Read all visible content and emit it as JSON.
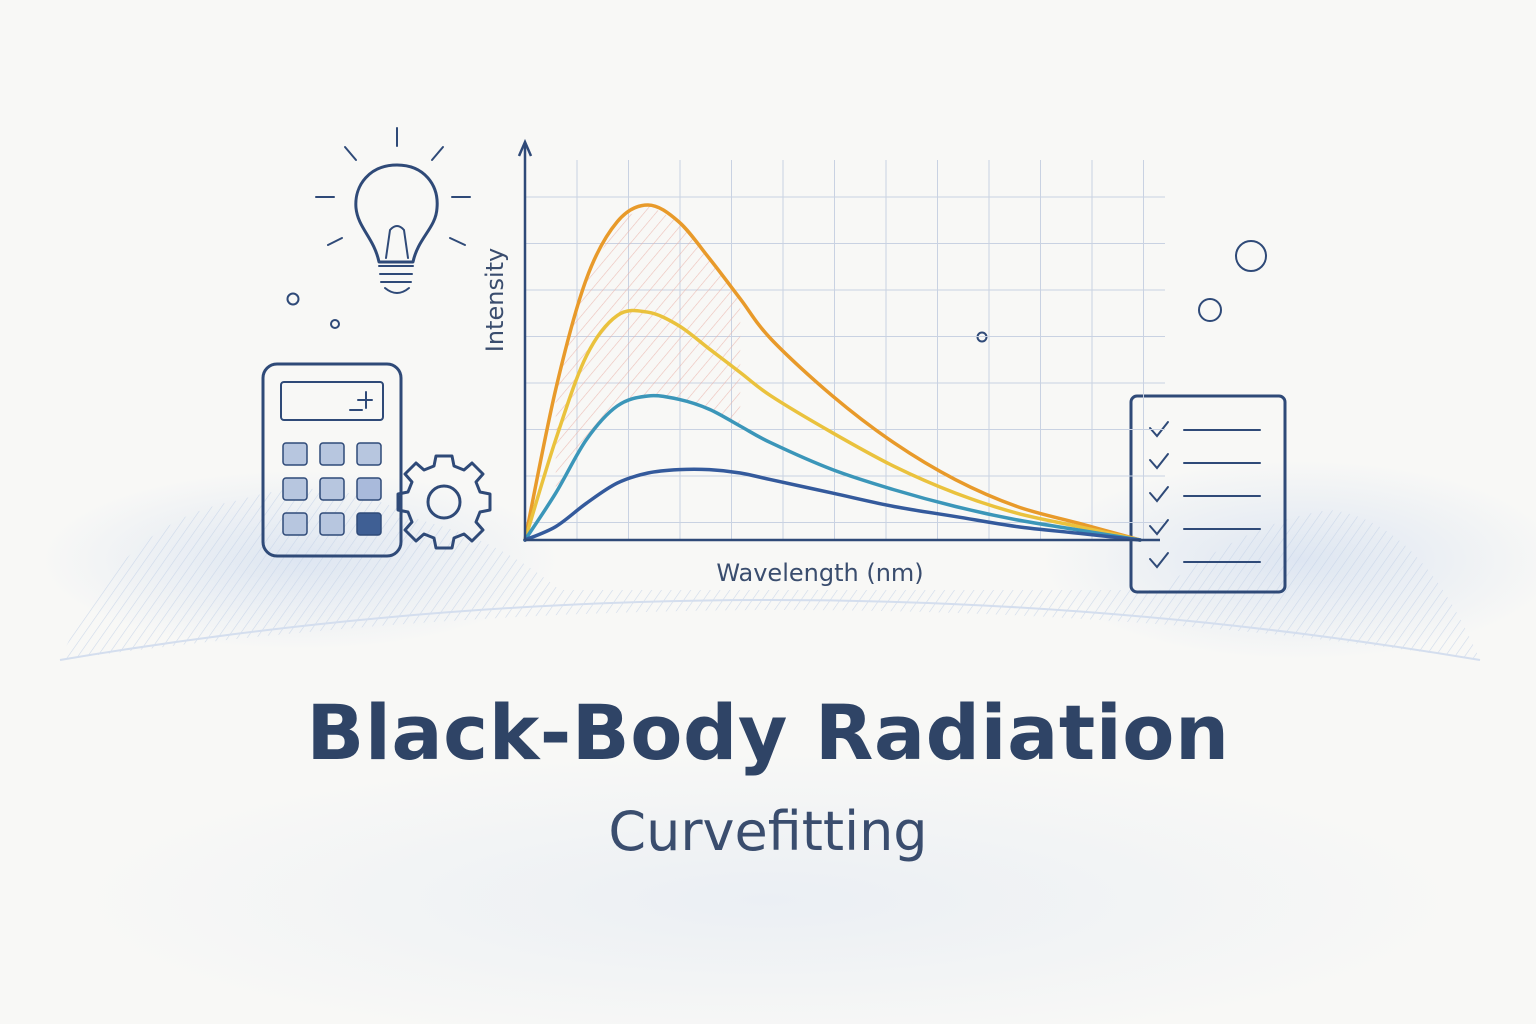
{
  "title": "Black-Body Radiation",
  "subtitle": "Curvefitting",
  "colors": {
    "ink": "#2f4a78",
    "title": "#2f4466",
    "background": "#f8f8f6",
    "wash": "#dbe4f1"
  },
  "icons": [
    "lightbulb-icon",
    "calculator-icon",
    "gear-icon",
    "checklist-icon",
    "bubble-icon"
  ],
  "chart_data": {
    "type": "line",
    "xlabel": "Wavelength (nm)",
    "ylabel": "Intensity",
    "grid": true,
    "legend": "none",
    "x_ticks_labeled": false,
    "y_ticks_labeled": false,
    "series": [
      {
        "color": "#e89a2a",
        "x": [
          0,
          0.05,
          0.1,
          0.15,
          0.2,
          0.25,
          0.3,
          0.35,
          0.4,
          0.5,
          0.6,
          0.7,
          0.8,
          0.9,
          1.0
        ],
        "values": [
          0,
          0.45,
          0.78,
          0.95,
          1.0,
          0.95,
          0.84,
          0.72,
          0.6,
          0.43,
          0.29,
          0.18,
          0.1,
          0.05,
          0.0
        ]
      },
      {
        "color": "#eac23d",
        "x": [
          0,
          0.05,
          0.1,
          0.15,
          0.2,
          0.25,
          0.3,
          0.35,
          0.4,
          0.5,
          0.6,
          0.7,
          0.8,
          0.9,
          1.0
        ],
        "values": [
          0,
          0.3,
          0.55,
          0.67,
          0.68,
          0.64,
          0.57,
          0.5,
          0.43,
          0.32,
          0.22,
          0.14,
          0.08,
          0.04,
          0.0
        ]
      },
      {
        "color": "#3b96b9",
        "x": [
          0,
          0.05,
          0.1,
          0.15,
          0.2,
          0.25,
          0.3,
          0.35,
          0.4,
          0.5,
          0.6,
          0.7,
          0.8,
          0.9,
          1.0
        ],
        "values": [
          0,
          0.14,
          0.3,
          0.4,
          0.43,
          0.42,
          0.39,
          0.34,
          0.29,
          0.21,
          0.15,
          0.1,
          0.06,
          0.03,
          0.0
        ]
      },
      {
        "color": "#345a9c",
        "x": [
          0,
          0.05,
          0.1,
          0.15,
          0.2,
          0.25,
          0.3,
          0.35,
          0.4,
          0.5,
          0.6,
          0.7,
          0.8,
          0.9,
          1.0
        ],
        "values": [
          0,
          0.04,
          0.11,
          0.17,
          0.2,
          0.21,
          0.21,
          0.2,
          0.18,
          0.14,
          0.1,
          0.07,
          0.04,
          0.02,
          0.0
        ]
      }
    ]
  }
}
